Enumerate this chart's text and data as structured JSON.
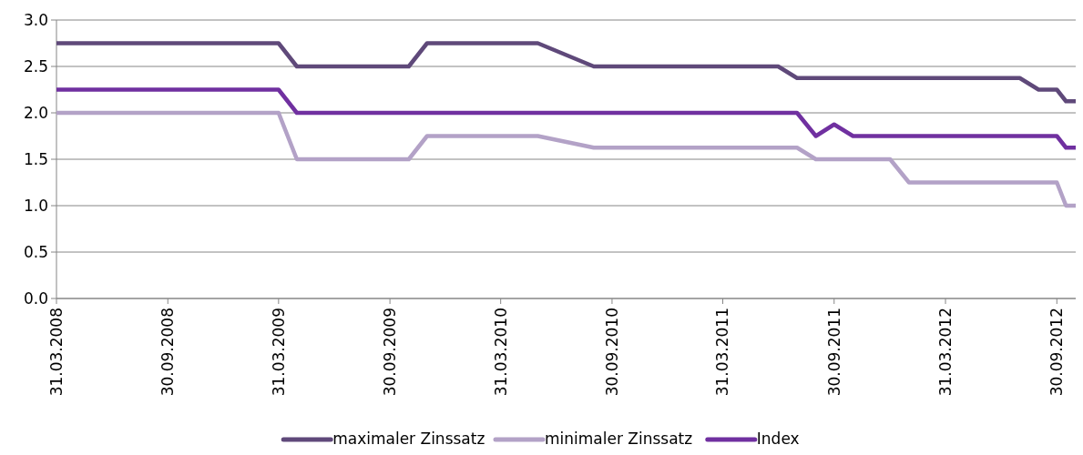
{
  "chart_data": {
    "type": "line",
    "ylim": [
      0,
      3
    ],
    "yticks": [
      {
        "value": 0,
        "label": "0.0"
      },
      {
        "value": 0.5,
        "label": "0.5"
      },
      {
        "value": 1,
        "label": "1.0"
      },
      {
        "value": 1.5,
        "label": "1.5"
      },
      {
        "value": 2,
        "label": "2.0"
      },
      {
        "value": 2.5,
        "label": "2.5"
      },
      {
        "value": 3,
        "label": "3.0"
      }
    ],
    "xlim": [
      "2008-03-31",
      "2012-10-31"
    ],
    "xticks": [
      {
        "value": "2008-03-31",
        "label": "31.03.2008"
      },
      {
        "value": "2008-09-30",
        "label": "30.09.2008"
      },
      {
        "value": "2009-03-31",
        "label": "31.03.2009"
      },
      {
        "value": "2009-09-30",
        "label": "30.09.2009"
      },
      {
        "value": "2010-03-31",
        "label": "31.03.2010"
      },
      {
        "value": "2010-09-30",
        "label": "30.09.2010"
      },
      {
        "value": "2011-03-31",
        "label": "31.03.2011"
      },
      {
        "value": "2011-09-30",
        "label": "30.09.2011"
      },
      {
        "value": "2012-03-31",
        "label": "31.03.2012"
      },
      {
        "value": "2012-09-30",
        "label": "30.09.2012"
      }
    ],
    "grid": "y",
    "legend": "bottom",
    "marker": "none",
    "line_style": "solid",
    "series": [
      {
        "name": "maximaler Zinssatz",
        "color": "#5f497a",
        "x": [
          "2008-03-31",
          "2009-03-31",
          "2009-04-30",
          "2009-10-31",
          "2009-11-30",
          "2010-05-31",
          "2010-08-31",
          "2011-06-30",
          "2011-07-31",
          "2012-07-31",
          "2012-08-31",
          "2012-09-30",
          "2012-10-15",
          "2012-10-31"
        ],
        "values": [
          2.75,
          2.75,
          2.5,
          2.5,
          2.75,
          2.75,
          2.5,
          2.5,
          2.375,
          2.375,
          2.25,
          2.25,
          2.125,
          2.125
        ]
      },
      {
        "name": "minimaler Zinssatz",
        "color": "#b3a2c7",
        "x": [
          "2008-03-31",
          "2009-03-31",
          "2009-04-30",
          "2009-10-31",
          "2009-11-30",
          "2010-05-31",
          "2010-08-31",
          "2011-07-31",
          "2011-08-31",
          "2011-12-31",
          "2012-01-31",
          "2012-09-30",
          "2012-10-15",
          "2012-10-31"
        ],
        "values": [
          2.0,
          2.0,
          1.5,
          1.5,
          1.75,
          1.75,
          1.625,
          1.625,
          1.5,
          1.5,
          1.25,
          1.25,
          1.0,
          1.0
        ]
      },
      {
        "name": "Index",
        "color": "#7030a0",
        "x": [
          "2008-03-31",
          "2009-03-31",
          "2009-04-30",
          "2011-07-31",
          "2011-08-31",
          "2011-09-30",
          "2011-10-31",
          "2012-09-30",
          "2012-10-15",
          "2012-10-31"
        ],
        "values": [
          2.25,
          2.25,
          2.0,
          2.0,
          1.75,
          1.875,
          1.75,
          1.75,
          1.625,
          1.625
        ]
      }
    ]
  }
}
